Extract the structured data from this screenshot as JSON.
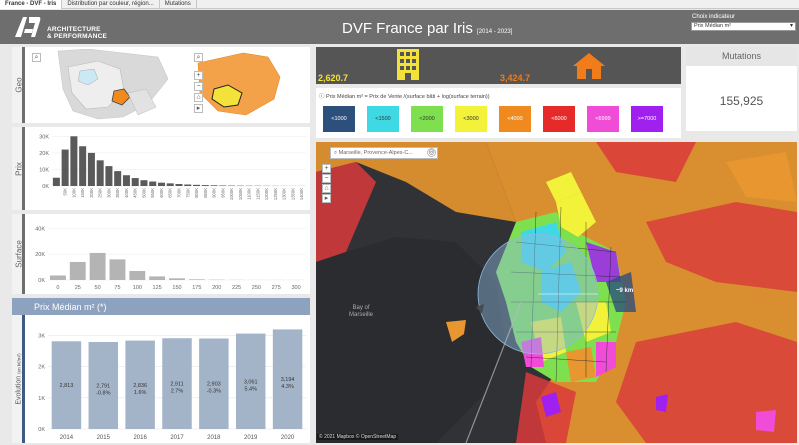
{
  "tabs": [
    {
      "label": "France - DVF - Iris",
      "active": true
    },
    {
      "label": "Distribution par couleur, région...",
      "active": false
    },
    {
      "label": "Mutations",
      "active": false
    }
  ],
  "header": {
    "logo_line1": "ARCHITECTURE",
    "logo_line2": "& PERFORMANCE",
    "title": "DVF France par Iris",
    "subtitle": "[2014 - 2023]",
    "indicator_label": "Choix indicateur",
    "indicator_value": "Prix Médian m²"
  },
  "geo_panel": {
    "label": "Geo"
  },
  "prix_panel": {
    "label": "Prix"
  },
  "surface_panel": {
    "label": "Surface"
  },
  "evolution_panel": {
    "title": "Prix Médian m² (*)",
    "ylabel": "Evolution",
    "ylabel_unit": "(en k€/m²)"
  },
  "kpis": {
    "appartement_value": "2,620.7",
    "maison_value": "3,424.7",
    "mutations_label": "Mutations",
    "mutations_value": "155,925"
  },
  "legend": {
    "formula": "Prix Médian m² = Prix de Vente /(surface bâti + log(surface terrain))",
    "items": [
      {
        "label": "<1000",
        "color": "#2d4f7c",
        "text": "#ffffff"
      },
      {
        "label": "<1500",
        "color": "#3fd9e6",
        "text": "#333333"
      },
      {
        "label": "<2000",
        "color": "#7ee04f",
        "text": "#333333"
      },
      {
        "label": "<3000",
        "color": "#f2f23a",
        "text": "#333333"
      },
      {
        "label": "<4000",
        "color": "#f08a1e",
        "text": "#ffffff"
      },
      {
        "label": "<6000",
        "color": "#e62a2a",
        "text": "#ffffff"
      },
      {
        "label": "<6999",
        "color": "#f04cd8",
        "text": "#ffffff"
      },
      {
        "label": ">=7000",
        "color": "#a020f0",
        "text": "#ffffff"
      }
    ]
  },
  "map": {
    "search_text": "Marseille, Provence-Alpes-C...",
    "distance_label": "~9 km",
    "bay_label": "Bay of Marseille",
    "attribution": "© 2021 Mapbox  © OpenStreetMap"
  },
  "colors": {
    "header": "#6e6e6e",
    "kpi_icon": "#f2e23a",
    "kpi_house": "#f07c1a",
    "bar_dark": "#5a5a5a",
    "bar_light": "#b4b4b4",
    "bar_blue": "#a4b4c8"
  },
  "chart_data": [
    {
      "type": "bar",
      "name": "prix-histogram",
      "categories": [
        "0K",
        "50K",
        "100K",
        "150K",
        "200K",
        "250K",
        "300K",
        "350K",
        "400K",
        "450K",
        "500K",
        "550K",
        "600K",
        "650K",
        "700K",
        "750K",
        "800K",
        "850K",
        "900K",
        "950K",
        "1000K",
        "1050K",
        "1100K",
        "1150K",
        "1200K",
        "1250K",
        "1300K",
        "1350K",
        "1400K"
      ],
      "values": [
        5000,
        22000,
        30000,
        24000,
        20000,
        15500,
        12000,
        9000,
        6500,
        4800,
        3500,
        2700,
        2000,
        1600,
        1200,
        900,
        700,
        550,
        420,
        320,
        250,
        200,
        160,
        130,
        100,
        80,
        60,
        50,
        40
      ],
      "xtick_labels": [
        "50K",
        "100K",
        "150K",
        "200K",
        "250K",
        "300K",
        "350K",
        "400K",
        "450K",
        "500K",
        "550K",
        "600K",
        "650K",
        "700K",
        "750K",
        "800K",
        "850K",
        "900K",
        "950K",
        "1000K",
        "1050K",
        "1100K",
        "1150K",
        "1200K",
        "1250K",
        "1300K",
        "1350K",
        "1400K"
      ],
      "yticks": [
        "0K",
        "10K",
        "20K",
        "30K"
      ],
      "ylim": [
        0,
        32000
      ]
    },
    {
      "type": "bar",
      "name": "surface-histogram",
      "categories": [
        "0",
        "25",
        "50",
        "75",
        "100",
        "125",
        "150",
        "175",
        "200",
        "225",
        "250",
        "275",
        "300"
      ],
      "values": [
        3500,
        14000,
        21000,
        16000,
        7000,
        2800,
        1300,
        500,
        250,
        120,
        80,
        50,
        40
      ],
      "xtick_labels": [
        "0",
        "25",
        "50",
        "75",
        "100",
        "125",
        "150",
        "175",
        "200",
        "225",
        "250",
        "275",
        "300"
      ],
      "yticks": [
        "0K",
        "20K",
        "40K"
      ],
      "ylim": [
        0,
        45000
      ]
    },
    {
      "type": "bar",
      "name": "evolution-prix-median",
      "categories": [
        "2014",
        "2015",
        "2016",
        "2017",
        "2018",
        "2019",
        "2020"
      ],
      "values": [
        2813,
        2791,
        2836,
        2911,
        2903,
        3061,
        3194
      ],
      "value_labels": [
        "2,813",
        "2,791",
        "2,836",
        "2,911",
        "2,903",
        "3,061",
        "3,194"
      ],
      "change_labels": [
        "",
        "-0.8%",
        "1.6%",
        "2.7%",
        "-0.3%",
        "5.4%",
        "4.3%"
      ],
      "yticks": [
        "0K",
        "1K",
        "2K",
        "3K"
      ],
      "ylim": [
        0,
        3400
      ]
    }
  ]
}
